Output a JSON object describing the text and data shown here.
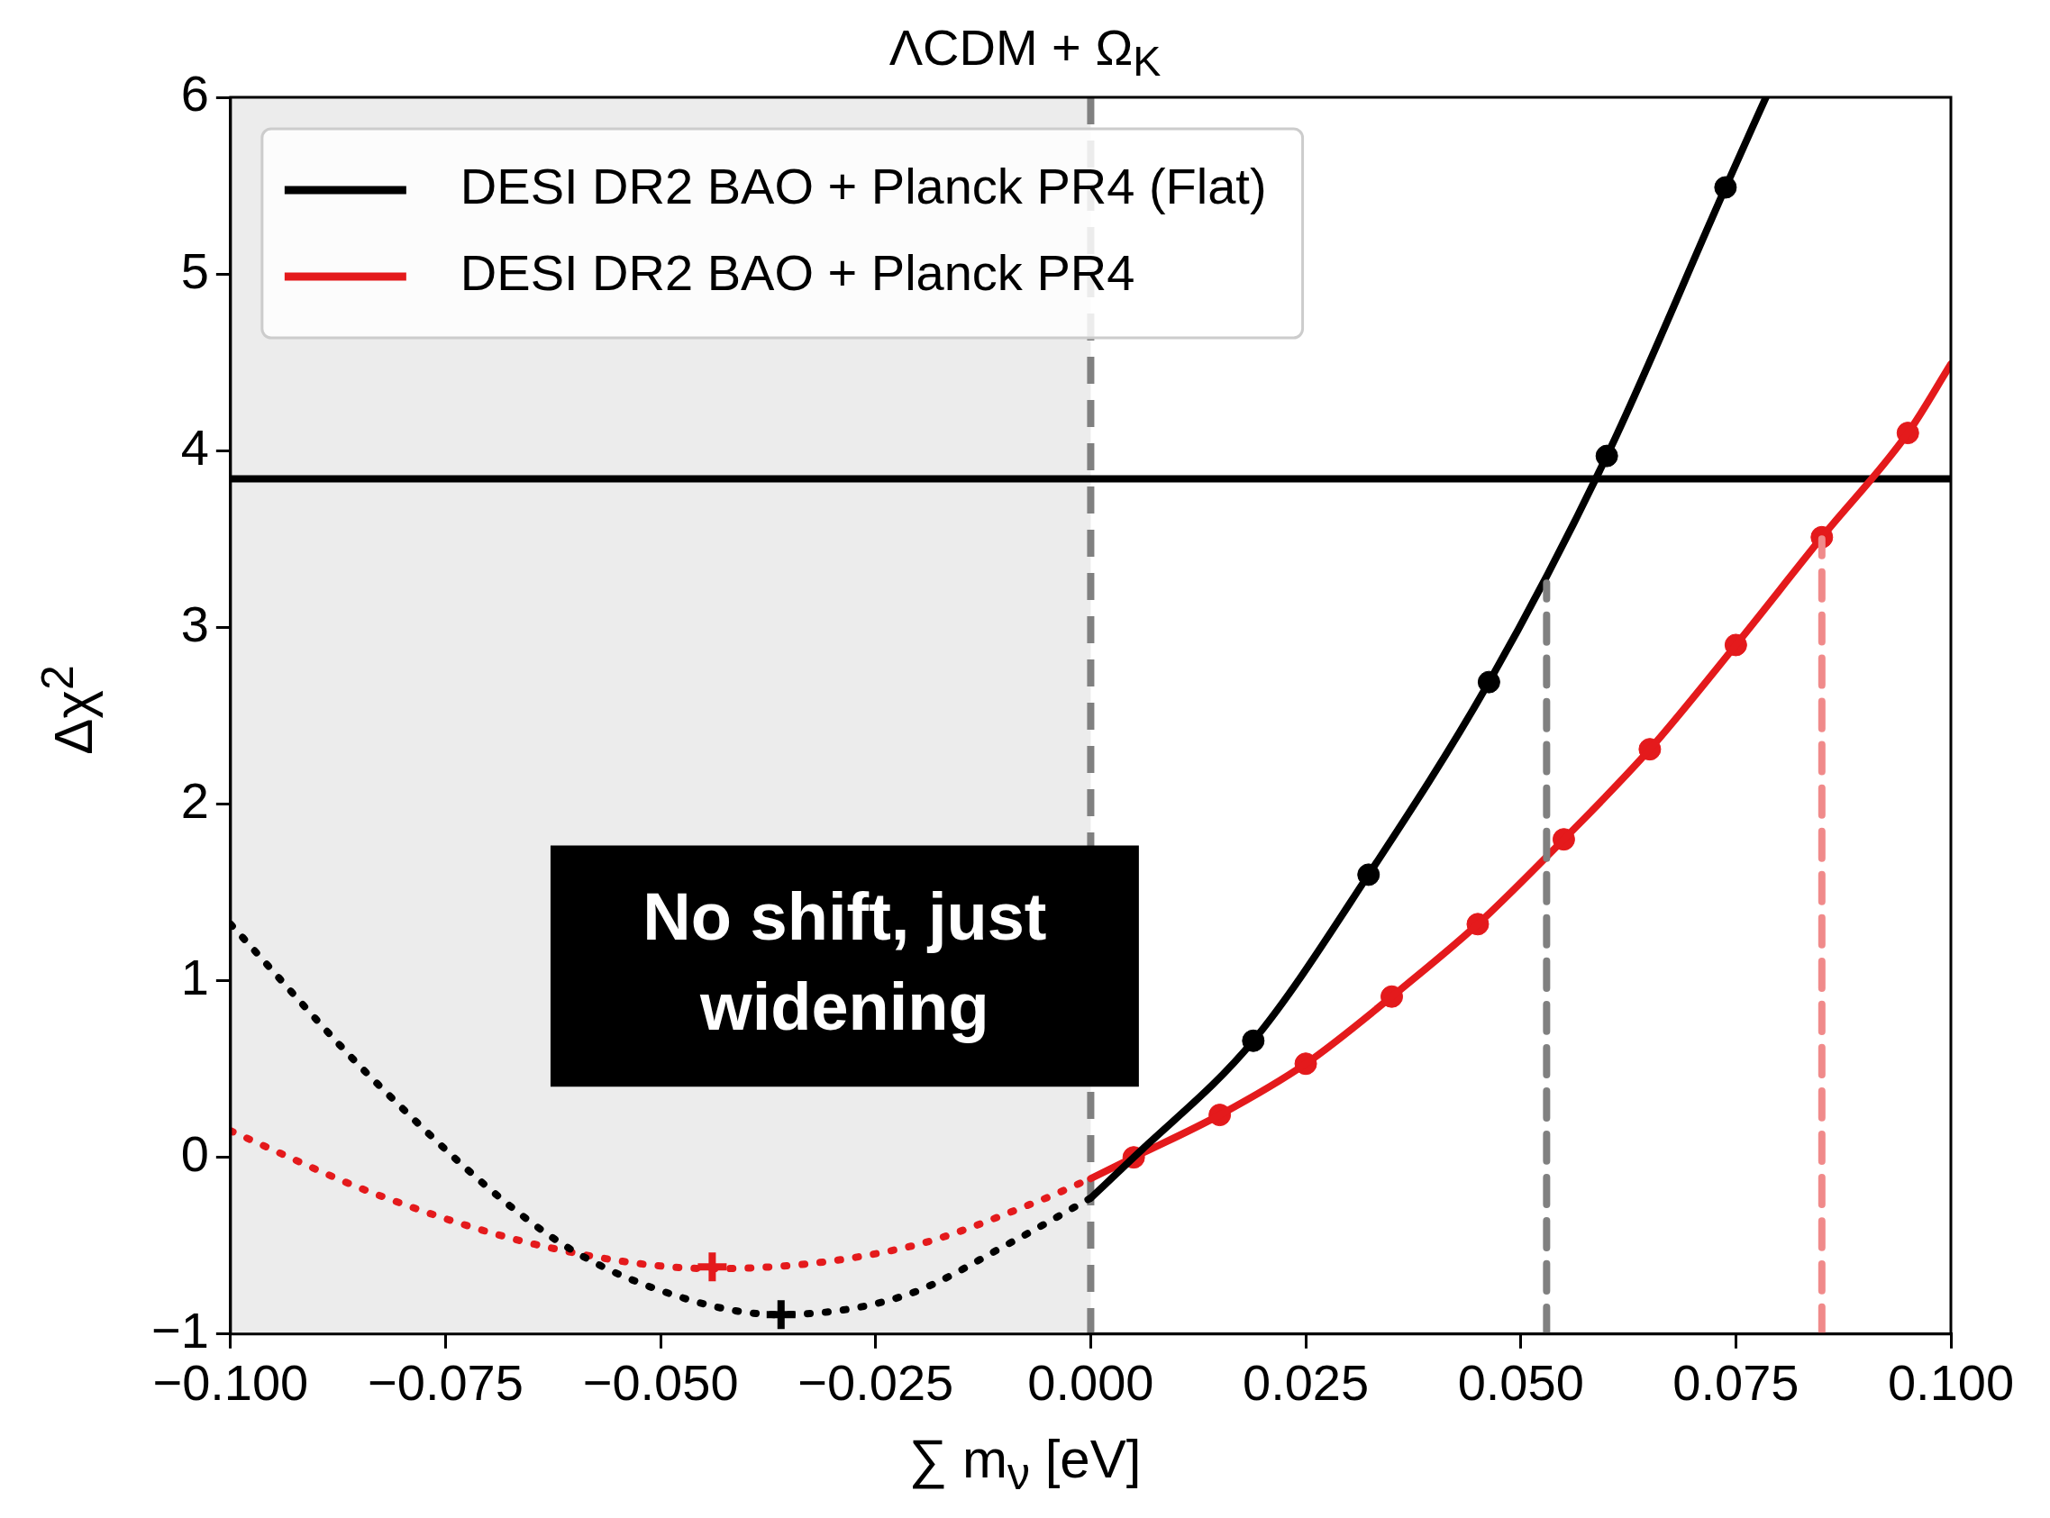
{
  "chart_data": {
    "type": "line",
    "title": "ΛCDM + Ω$_{K}$",
    "xlabel": "∑ m$_{ν}$ [eV]",
    "ylabel": "Δχ$^{2}$",
    "xlim": [
      -0.1,
      0.1
    ],
    "xticks": [
      {
        "value": -0.1,
        "label": "−0.100"
      },
      {
        "value": -0.075,
        "label": "−0.075"
      },
      {
        "value": -0.05,
        "label": "−0.050"
      },
      {
        "value": -0.025,
        "label": "−0.025"
      },
      {
        "value": 0,
        "label": "0.000"
      },
      {
        "value": 0.025,
        "label": "0.025"
      },
      {
        "value": 0.05,
        "label": "0.050"
      },
      {
        "value": 0.075,
        "label": "0.075"
      },
      {
        "value": 0.1,
        "label": "0.100"
      }
    ],
    "ylim": [
      -1,
      6
    ],
    "yticks": [
      {
        "value": -1,
        "label": "−1"
      },
      0,
      1,
      2,
      3,
      4,
      5,
      6
    ],
    "grid": false,
    "legend": "top left",
    "bands": [
      {
        "axis": "x",
        "from": -0.1,
        "to": 0,
        "color": "#ececec"
      }
    ],
    "ref_lines": [
      {
        "axis": "y",
        "value": 3.84,
        "color": "#000000",
        "line_style": "solid"
      },
      {
        "axis": "x",
        "value": 0,
        "color": "#808080",
        "line_style": "dashed"
      }
    ],
    "annotations": [
      "No shift, just widening"
    ],
    "series": [
      {
        "type": "line",
        "color": "#808080",
        "line_style": "dashed",
        "marker": "none",
        "x": [
          0.053,
          0.053
        ],
        "values": [
          -1,
          3.25
        ]
      },
      {
        "type": "line",
        "color": "#f08a8a",
        "line_style": "dashed",
        "marker": "none",
        "x": [
          0.085,
          0.085
        ],
        "values": [
          -1,
          3.5
        ]
      },
      {
        "type": "line",
        "color": "#000000",
        "line_style": "dotted",
        "marker": "none",
        "x": [
          -0.1,
          -0.083,
          -0.063,
          -0.0508,
          -0.0362,
          -0.0215,
          -0.0092,
          0
        ],
        "values": [
          1.32,
          0.42,
          -0.44,
          -0.74,
          -0.89,
          -0.78,
          -0.48,
          -0.23
        ]
      },
      {
        "type": "line",
        "color": "#e41a1c",
        "line_style": "dotted",
        "marker": "none",
        "x": [
          -0.1,
          -0.083,
          -0.063,
          -0.0438,
          -0.0215,
          -0.0062,
          0
        ],
        "values": [
          0.15,
          -0.21,
          -0.51,
          -0.63,
          -0.51,
          -0.25,
          -0.12
        ]
      },
      {
        "type": "line",
        "name": "DESI DR2 BAO + Planck PR4 (Flat)",
        "color": "#000000",
        "line_style": "solid",
        "marker": "none",
        "x": [
          0,
          0.005,
          0.0189,
          0.0323,
          0.0463,
          0.06,
          0.0738,
          0.0785
        ],
        "values": [
          -0.23,
          0,
          0.66,
          1.6,
          2.69,
          3.97,
          5.49,
          6
        ]
      },
      {
        "type": "line",
        "name": "DESI DR2 BAO + Planck PR4",
        "color": "#e41a1c",
        "line_style": "solid",
        "marker": "none",
        "x": [
          0,
          0.005,
          0.015,
          0.025,
          0.035,
          0.045,
          0.055,
          0.065,
          0.075,
          0.085,
          0.095,
          0.1
        ],
        "values": [
          -0.12,
          0,
          0.24,
          0.53,
          0.91,
          1.32,
          1.8,
          2.31,
          2.9,
          3.51,
          4.1,
          4.49
        ]
      },
      {
        "type": "scatter",
        "color": "#000000",
        "marker": "circle",
        "x": [
          0.0189,
          0.0323,
          0.0463,
          0.06,
          0.0738
        ],
        "values": [
          0.66,
          1.6,
          2.69,
          3.97,
          5.49
        ]
      },
      {
        "type": "scatter",
        "color": "#e41a1c",
        "marker": "circle",
        "x": [
          0.005,
          0.015,
          0.025,
          0.035,
          0.045,
          0.055,
          0.065,
          0.075,
          0.085,
          0.095
        ],
        "values": [
          0,
          0.24,
          0.53,
          0.91,
          1.32,
          1.8,
          2.31,
          2.9,
          3.51,
          4.1
        ]
      },
      {
        "type": "scatter",
        "color": "#000000",
        "marker": "cross",
        "x": [
          -0.036
        ],
        "values": [
          -0.89
        ]
      },
      {
        "type": "scatter",
        "color": "#e41a1c",
        "marker": "cross",
        "x": [
          -0.044
        ],
        "values": [
          -0.62
        ]
      }
    ]
  }
}
